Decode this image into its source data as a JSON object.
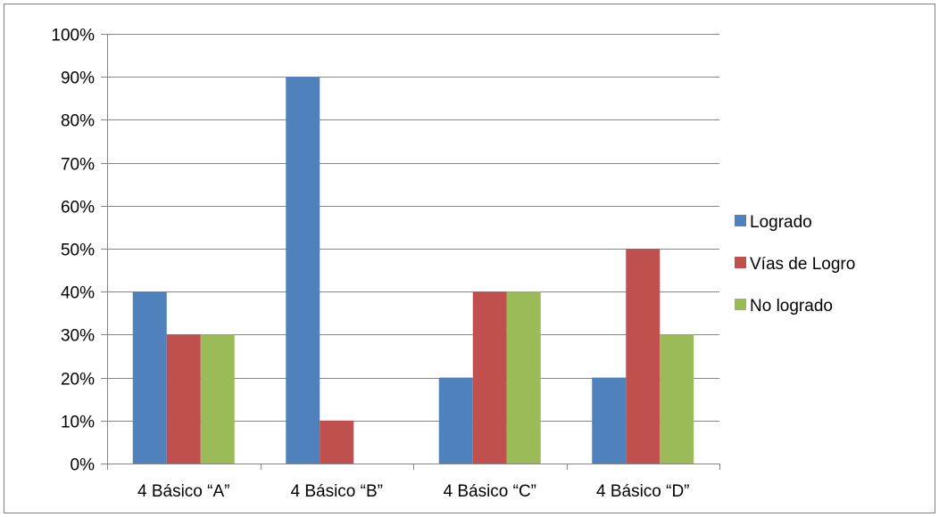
{
  "chart_data": {
    "type": "bar",
    "title": "",
    "xlabel": "",
    "ylabel": "",
    "categories": [
      "4 Básico “A”",
      "4 Básico “B”",
      "4 Básico “C”",
      "4 Básico “D”"
    ],
    "series": [
      {
        "name": "Logrado",
        "color": "#4F81BD",
        "values": [
          40,
          90,
          20,
          20
        ]
      },
      {
        "name": "Vías de Logro",
        "color": "#C0504D",
        "values": [
          30,
          10,
          40,
          50
        ]
      },
      {
        "name": "No logrado",
        "color": "#9BBB59",
        "values": [
          30,
          0,
          40,
          30
        ]
      }
    ],
    "ylim": [
      0,
      100
    ],
    "yticks": [
      "0%",
      "10%",
      "20%",
      "30%",
      "40%",
      "50%",
      "60%",
      "70%",
      "80%",
      "90%",
      "100%"
    ],
    "grid": true,
    "legend_position": "right"
  }
}
